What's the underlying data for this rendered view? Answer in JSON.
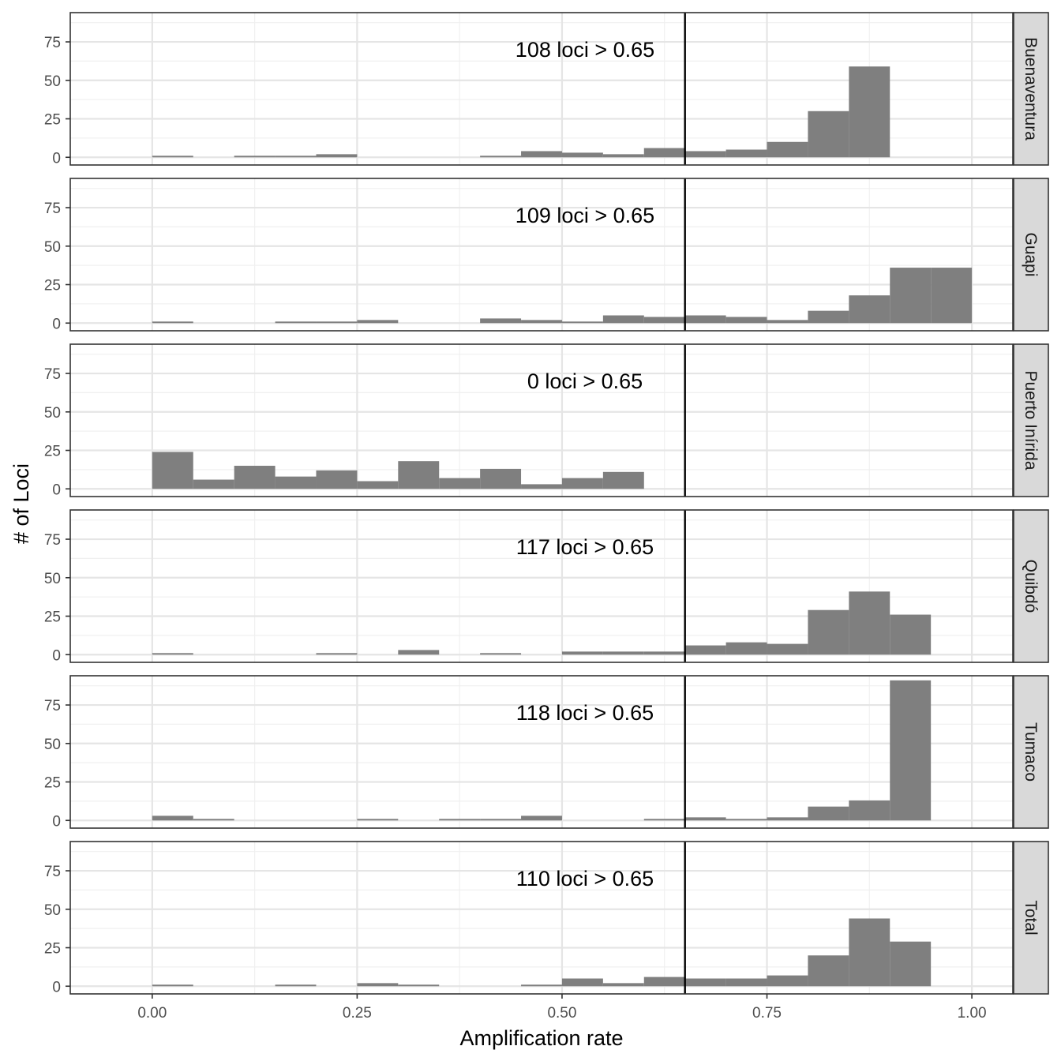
{
  "chart_data": {
    "type": "bar",
    "subtype": "faceted-histogram",
    "xlabel": "Amplification rate",
    "ylabel": "# of Loci",
    "xlim": [
      -0.1,
      1.05
    ],
    "ylim": [
      -5,
      94
    ],
    "x_ticks": [
      0,
      0.25,
      0.5,
      0.75,
      1
    ],
    "x_tick_labels": [
      "0.00",
      "0.25",
      "0.50",
      "0.75",
      "1.00"
    ],
    "y_ticks": [
      0,
      25,
      50,
      75
    ],
    "y_tick_labels": [
      "0",
      "25",
      "50",
      "75"
    ],
    "bin_width": 0.05,
    "bin_starts": [
      0,
      0.05,
      0.1,
      0.15,
      0.2,
      0.25,
      0.3,
      0.35,
      0.4,
      0.45,
      0.5,
      0.55,
      0.6,
      0.65,
      0.7,
      0.75,
      0.8,
      0.85,
      0.9,
      0.95
    ],
    "threshold": 0.65,
    "grid": true,
    "bar_color": "#7f7f7f",
    "facet_strip_color": "#d9d9d9",
    "facets": [
      {
        "name": "Buenaventura",
        "annotation": "108 loci > 0.65",
        "values": [
          1,
          0,
          1,
          1,
          2,
          0,
          0,
          0,
          1,
          4,
          3,
          2,
          6,
          4,
          5,
          10,
          30,
          59,
          0,
          0
        ]
      },
      {
        "name": "Guapi",
        "annotation": "109 loci > 0.65",
        "values": [
          1,
          0,
          0,
          1,
          1,
          2,
          0,
          0,
          3,
          2,
          1,
          5,
          4,
          5,
          4,
          2,
          8,
          18,
          36,
          36
        ]
      },
      {
        "name": "Puerto Inírida",
        "annotation": "0 loci > 0.65",
        "values": [
          24,
          6,
          15,
          8,
          12,
          5,
          18,
          7,
          13,
          3,
          7,
          11,
          0,
          0,
          0,
          0,
          0,
          0,
          0,
          0
        ]
      },
      {
        "name": "Quibdó",
        "annotation": "117 loci > 0.65",
        "values": [
          1,
          0,
          0,
          0,
          1,
          0,
          3,
          0,
          1,
          0,
          2,
          2,
          2,
          6,
          8,
          7,
          29,
          41,
          26,
          0
        ]
      },
      {
        "name": "Tumaco",
        "annotation": "118 loci > 0.65",
        "values": [
          3,
          1,
          0,
          0,
          0,
          1,
          0,
          1,
          1,
          3,
          0,
          0,
          1,
          2,
          1,
          2,
          9,
          13,
          91,
          0
        ]
      },
      {
        "name": "Total",
        "annotation": "110 loci > 0.65",
        "values": [
          1,
          0,
          0,
          1,
          0,
          2,
          1,
          0,
          0,
          1,
          5,
          2,
          6,
          5,
          5,
          7,
          20,
          44,
          29,
          0
        ]
      }
    ]
  }
}
